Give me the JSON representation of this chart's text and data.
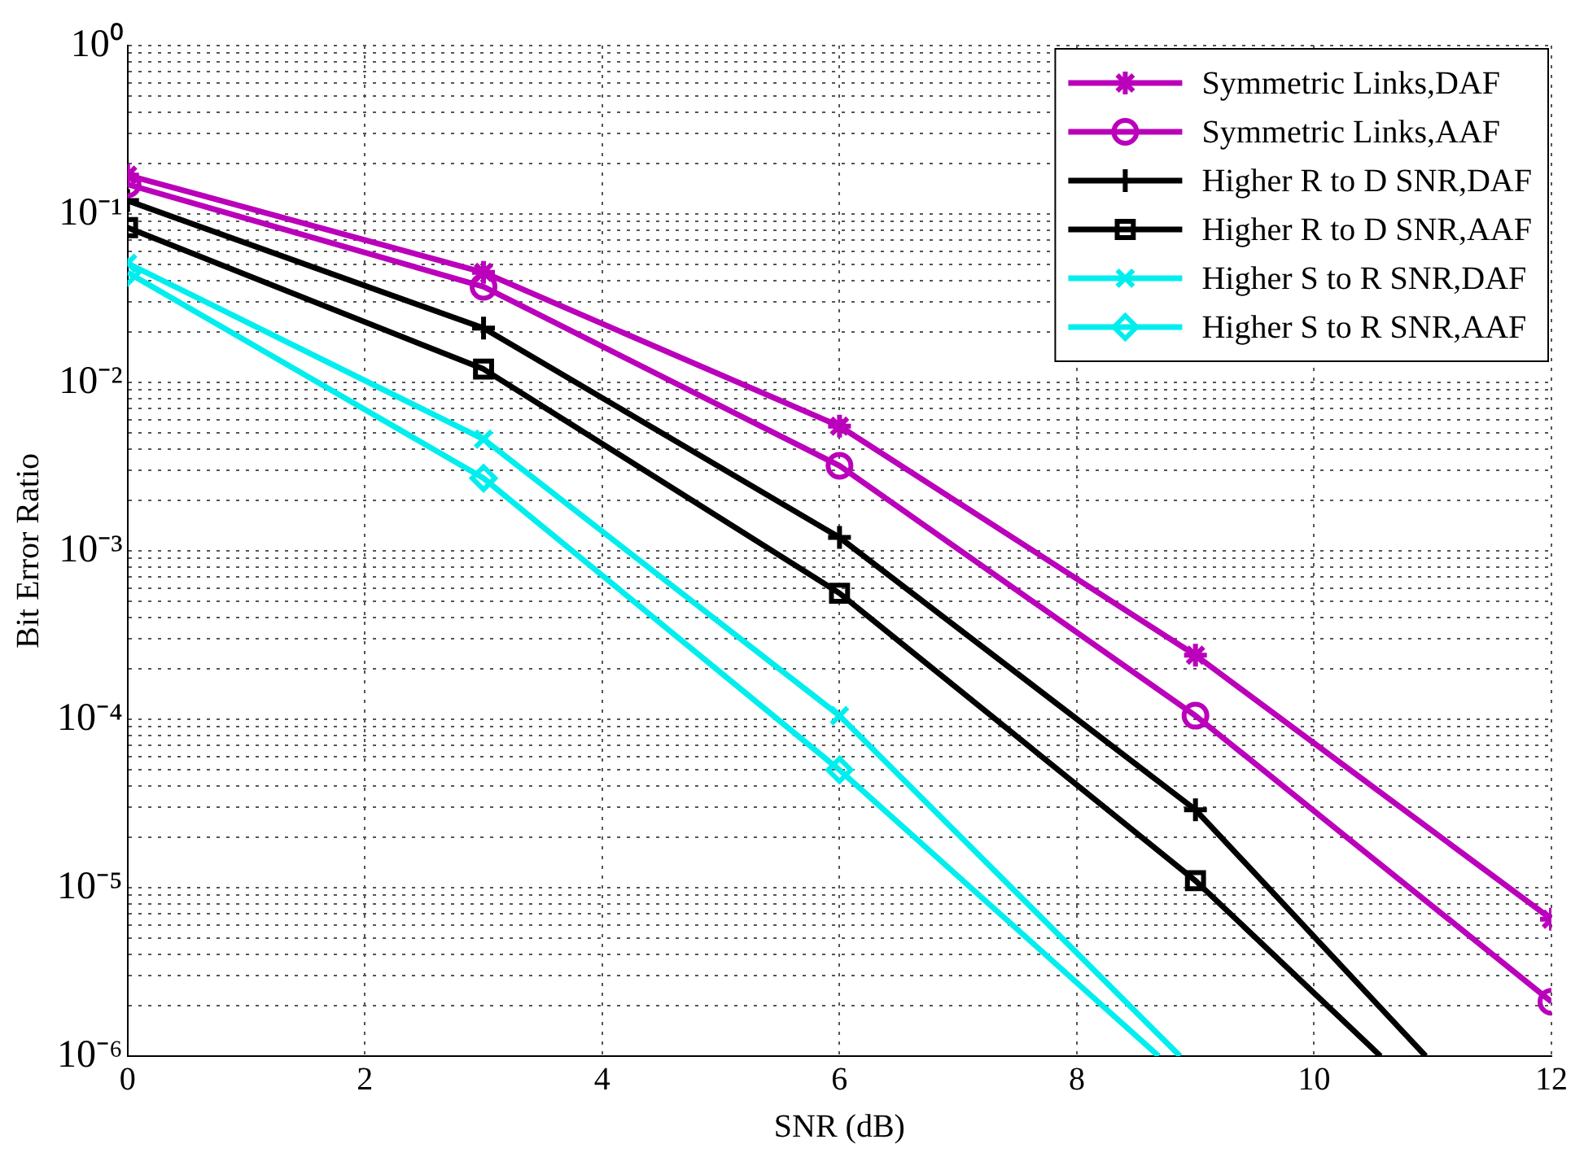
{
  "chart_data": {
    "type": "line",
    "xlabel": "SNR (dB)",
    "ylabel": "Bit Error Ratio",
    "log": "y",
    "grid": true,
    "legend": "top right",
    "line_style": "solid",
    "xlim": [
      0,
      12
    ],
    "xticks": [
      0,
      2,
      4,
      6,
      8,
      10,
      12
    ],
    "ylim": [
      1e-06,
      1
    ],
    "yticks": [
      {
        "value": 1e-06,
        "label": "10⁻⁶"
      },
      {
        "value": 2e-06,
        "label": null
      },
      {
        "value": 3e-06,
        "label": null
      },
      {
        "value": 4e-06,
        "label": null
      },
      {
        "value": 5e-06,
        "label": null
      },
      {
        "value": 6e-06,
        "label": null
      },
      {
        "value": 7e-06,
        "label": null
      },
      {
        "value": 8e-06,
        "label": null
      },
      {
        "value": 9e-06,
        "label": null
      },
      {
        "value": 1e-05,
        "label": "10⁻⁵"
      },
      {
        "value": 2e-05,
        "label": null
      },
      {
        "value": 3e-05,
        "label": null
      },
      {
        "value": 4e-05,
        "label": null
      },
      {
        "value": 5e-05,
        "label": null
      },
      {
        "value": 6e-05,
        "label": null
      },
      {
        "value": 7e-05,
        "label": null
      },
      {
        "value": 8e-05,
        "label": null
      },
      {
        "value": 9e-05,
        "label": null
      },
      {
        "value": 0.0001,
        "label": "10⁻⁴"
      },
      {
        "value": 0.0002,
        "label": null
      },
      {
        "value": 0.0003,
        "label": null
      },
      {
        "value": 0.0004,
        "label": null
      },
      {
        "value": 0.0005,
        "label": null
      },
      {
        "value": 0.0006,
        "label": null
      },
      {
        "value": 0.0007,
        "label": null
      },
      {
        "value": 0.0008,
        "label": null
      },
      {
        "value": 0.0009,
        "label": null
      },
      {
        "value": 0.001,
        "label": "10⁻³"
      },
      {
        "value": 0.002,
        "label": null
      },
      {
        "value": 0.003,
        "label": null
      },
      {
        "value": 0.004,
        "label": null
      },
      {
        "value": 0.005,
        "label": null
      },
      {
        "value": 0.006,
        "label": null
      },
      {
        "value": 0.007,
        "label": null
      },
      {
        "value": 0.008,
        "label": null
      },
      {
        "value": 0.009,
        "label": null
      },
      {
        "value": 0.01,
        "label": "10⁻²"
      },
      {
        "value": 0.02,
        "label": null
      },
      {
        "value": 0.03,
        "label": null
      },
      {
        "value": 0.04,
        "label": null
      },
      {
        "value": 0.05,
        "label": null
      },
      {
        "value": 0.06,
        "label": null
      },
      {
        "value": 0.07,
        "label": null
      },
      {
        "value": 0.08,
        "label": null
      },
      {
        "value": 0.09,
        "label": null
      },
      {
        "value": 0.1,
        "label": "10⁻¹"
      },
      {
        "value": 0.2,
        "label": null
      },
      {
        "value": 0.3,
        "label": null
      },
      {
        "value": 0.4,
        "label": null
      },
      {
        "value": 0.5,
        "label": null
      },
      {
        "value": 0.6,
        "label": null
      },
      {
        "value": 0.7,
        "label": null
      },
      {
        "value": 0.8,
        "label": null
      },
      {
        "value": 0.9,
        "label": null
      },
      {
        "value": 1,
        "label": "10⁰"
      }
    ],
    "series": [
      {
        "name": "Symmetric Links,DAF",
        "color": "#bb00bb",
        "marker": "cross",
        "x": [
          0,
          3,
          6,
          9,
          12
        ],
        "values": [
          0.17,
          0.045,
          0.0055,
          0.00024,
          6.5e-06
        ]
      },
      {
        "name": "Symmetric Links,AAF",
        "color": "#bb00bb",
        "marker": "circle",
        "x": [
          0,
          3,
          6,
          9,
          12
        ],
        "values": [
          0.15,
          0.037,
          0.0032,
          0.000105,
          2.1e-06
        ]
      },
      {
        "name": "Higher R to D SNR,DAF",
        "color": "#000000",
        "marker": "plus",
        "x": [
          0,
          3,
          6,
          9,
          10.94
        ],
        "values": [
          0.12,
          0.021,
          0.0012,
          2.9e-05,
          1e-06
        ]
      },
      {
        "name": "Higher R to D SNR,AAF",
        "color": "#000000",
        "marker": "square",
        "x": [
          0,
          3,
          6,
          9,
          10.56
        ],
        "values": [
          0.083,
          0.012,
          0.00056,
          1.1e-05,
          1e-06
        ]
      },
      {
        "name": "Higher S to R SNR,DAF",
        "color": "#00eeee",
        "marker": "x",
        "x": [
          0,
          3,
          6,
          8.87
        ],
        "values": [
          0.051,
          0.0046,
          0.000105,
          1e-06
        ]
      },
      {
        "name": "Higher S to R SNR,AAF",
        "color": "#00eeee",
        "marker": "diamond",
        "x": [
          0,
          3,
          6,
          8.69
        ],
        "values": [
          0.045,
          0.0027,
          5e-05,
          1e-06
        ]
      }
    ]
  }
}
